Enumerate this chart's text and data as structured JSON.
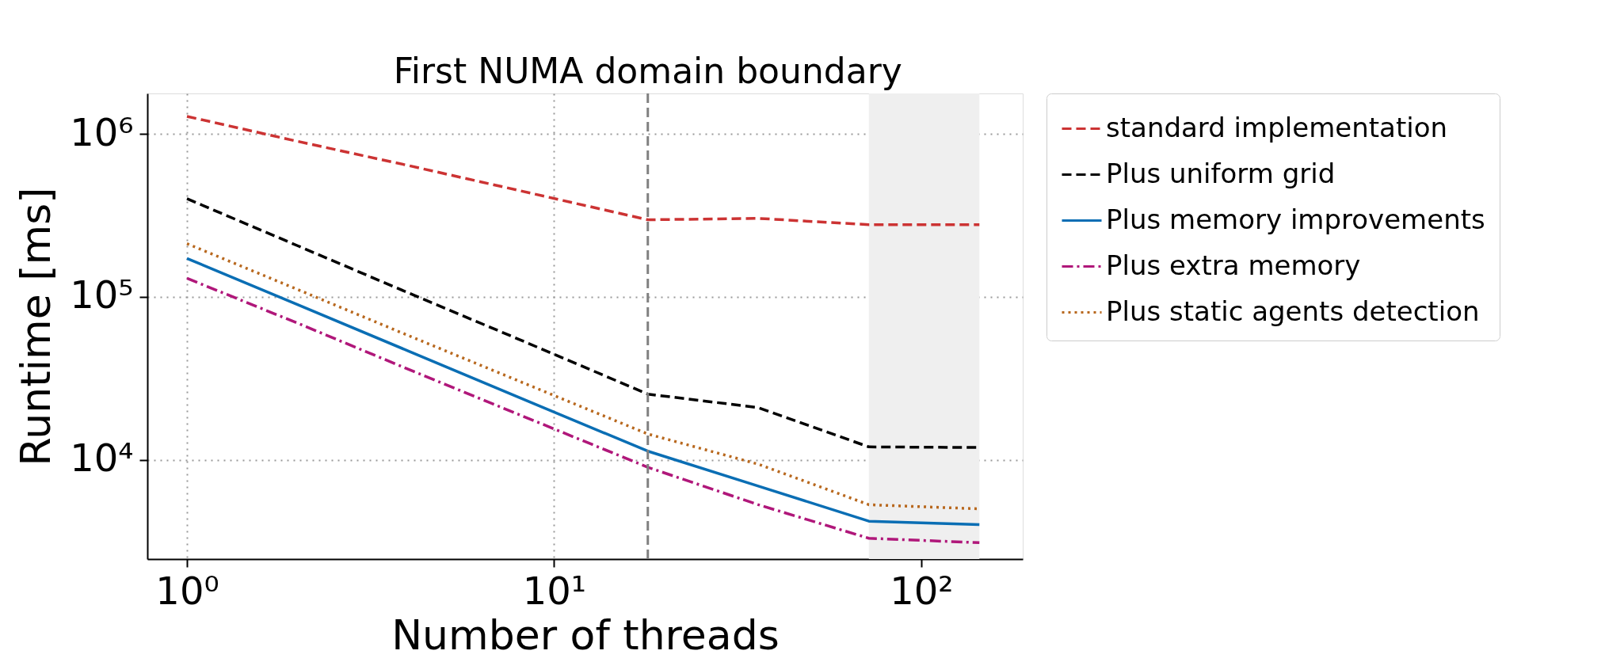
{
  "chart_data": {
    "type": "line",
    "xlabel": "Number of threads",
    "ylabel": "Runtime [ms]",
    "x": [
      1,
      2,
      4,
      8,
      18,
      36,
      72,
      144
    ],
    "series": [
      {
        "name": "standard implementation",
        "color": "#cc3333",
        "line_style": "dashed",
        "values": [
          1280000,
          900000,
          640000,
          450000,
          297000,
          303000,
          277000,
          277000
        ]
      },
      {
        "name": "Plus uniform grid",
        "color": "#000000",
        "line_style": "dashed",
        "values": [
          400000,
          206000,
          106000,
          55000,
          25300,
          20900,
          12000,
          11900
        ]
      },
      {
        "name": "Plus memory improvements",
        "color": "#0a6eb4",
        "line_style": "solid",
        "values": [
          172000,
          89600,
          46600,
          24200,
          11300,
          6900,
          4200,
          4000
        ]
      },
      {
        "name": "Plus extra memory",
        "color": "#b0177a",
        "line_style": "dashdot",
        "values": [
          130000,
          69000,
          36000,
          19000,
          9000,
          5300,
          3300,
          3100
        ]
      },
      {
        "name": "Plus static agents detection",
        "color": "#b8681e",
        "line_style": "dotted",
        "values": [
          212000,
          111000,
          58000,
          30500,
          14400,
          9400,
          5300,
          5000
        ]
      }
    ],
    "log": "xy",
    "xlim": [
      0.78,
      189
    ],
    "ylim": [
      2460,
      1770000
    ],
    "xticks": [
      {
        "value": 1,
        "label": "10⁰"
      },
      {
        "value": 10,
        "label": "10¹"
      },
      {
        "value": 100,
        "label": "10²"
      }
    ],
    "yticks": [
      {
        "value": 10000,
        "label": "10⁴"
      },
      {
        "value": 100000,
        "label": "10⁵"
      },
      {
        "value": 1000000,
        "label": "10⁶"
      }
    ],
    "grid": true,
    "legend": "right",
    "marker": "none",
    "ref_lines": [
      {
        "axis": "x",
        "value": 18,
        "label": "First NUMA domain boundary",
        "color": "#808080",
        "line_style": "dashed"
      }
    ],
    "bands": [
      {
        "axis": "x",
        "from": 72,
        "to": 144,
        "color": "#efefef"
      }
    ]
  }
}
